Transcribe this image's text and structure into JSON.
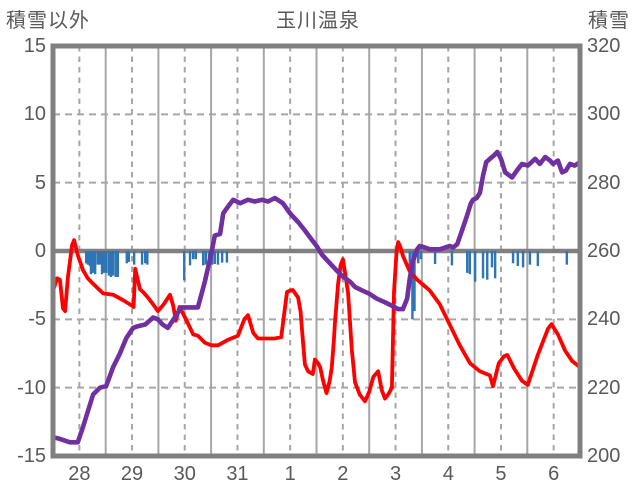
{
  "chart_data": {
    "type": "composite",
    "title": "玉川温泉",
    "left_axis": {
      "label": "積雪以外",
      "min": -15,
      "max": 15,
      "ticks": [
        15,
        10,
        5,
        0,
        -5,
        -10,
        -15
      ]
    },
    "right_axis": {
      "label": "積雪",
      "min": 200,
      "max": 320,
      "ticks": [
        320,
        300,
        280,
        260,
        240,
        220,
        200
      ]
    },
    "x_axis": {
      "labels": [
        "28",
        "29",
        "30",
        "31",
        "1",
        "2",
        "3",
        "4",
        "5",
        "6"
      ],
      "days": 10,
      "solid_grid_at_day_bounds": true,
      "dashed_grid_at_noon": true
    },
    "colors": {
      "temperature": "#ff0000",
      "snow_depth": "#7030a0",
      "precipitation": "#2e75b6",
      "grid": "#a6a6a6",
      "axis_frame": "#808080",
      "text": "#595959",
      "background": "#ffffff"
    },
    "series": [
      {
        "name": "precipitation",
        "type": "bar",
        "axis": "left",
        "color": "#2e75b6",
        "points": [
          [
            0.63,
            -0.9
          ],
          [
            0.66,
            -1.0
          ],
          [
            0.7,
            -1.1
          ],
          [
            0.72,
            -1.7
          ],
          [
            0.76,
            -1.6
          ],
          [
            0.8,
            -1.7
          ],
          [
            0.85,
            -1.0
          ],
          [
            0.89,
            -1.0
          ],
          [
            0.93,
            -1.7
          ],
          [
            0.97,
            -1.6
          ],
          [
            1.01,
            -1.6
          ],
          [
            1.06,
            -1.8
          ],
          [
            1.1,
            -1.9
          ],
          [
            1.14,
            -1.8
          ],
          [
            1.19,
            -1.9
          ],
          [
            1.23,
            -1.9
          ],
          [
            1.4,
            -0.9
          ],
          [
            1.44,
            -0.8
          ],
          [
            1.54,
            -1.0
          ],
          [
            1.69,
            -1.0
          ],
          [
            1.75,
            -0.9
          ],
          [
            1.79,
            -1.0
          ],
          [
            2.49,
            -2.15
          ],
          [
            2.6,
            -1.05
          ],
          [
            2.66,
            -0.6
          ],
          [
            2.71,
            -0.6
          ],
          [
            2.85,
            -1.05
          ],
          [
            2.9,
            -1.0
          ],
          [
            2.96,
            -0.95
          ],
          [
            3.02,
            -1.0
          ],
          [
            3.07,
            -0.95
          ],
          [
            3.13,
            -1.0
          ],
          [
            3.21,
            -0.85
          ],
          [
            3.3,
            -0.85
          ],
          [
            6.77,
            -1.1
          ],
          [
            6.82,
            -5.0
          ],
          [
            6.86,
            -4.4
          ],
          [
            6.93,
            -0.9
          ],
          [
            6.98,
            -0.6
          ],
          [
            7.25,
            -0.95
          ],
          [
            7.57,
            -1.05
          ],
          [
            7.86,
            -1.6
          ],
          [
            7.91,
            -1.7
          ],
          [
            8.01,
            -2.25
          ],
          [
            8.16,
            -2.0
          ],
          [
            8.24,
            -2.1
          ],
          [
            8.33,
            -1.2
          ],
          [
            8.39,
            -2.0
          ],
          [
            8.73,
            -0.9
          ],
          [
            8.82,
            -1.1
          ],
          [
            8.92,
            -1.2
          ],
          [
            9.05,
            -1.0
          ],
          [
            9.2,
            -1.1
          ],
          [
            9.75,
            -1.0
          ]
        ]
      },
      {
        "name": "temperature",
        "type": "line",
        "axis": "left",
        "color": "#ff0000",
        "width": 3.8,
        "points": [
          [
            0,
            -2.9
          ],
          [
            0.08,
            -2.0
          ],
          [
            0.13,
            -2.1
          ],
          [
            0.19,
            -4.2
          ],
          [
            0.23,
            -4.4
          ],
          [
            0.28,
            -2.0
          ],
          [
            0.36,
            0.4
          ],
          [
            0.4,
            0.8
          ],
          [
            0.47,
            -0.3
          ],
          [
            0.57,
            -1.4
          ],
          [
            0.66,
            -2.0
          ],
          [
            0.76,
            -2.4
          ],
          [
            0.95,
            -3.1
          ],
          [
            1.14,
            -3.2
          ],
          [
            1.33,
            -3.6
          ],
          [
            1.5,
            -4.0
          ],
          [
            1.53,
            -4.1
          ],
          [
            1.56,
            -1.3
          ],
          [
            1.65,
            -2.8
          ],
          [
            1.71,
            -3.0
          ],
          [
            1.8,
            -3.4
          ],
          [
            1.9,
            -3.9
          ],
          [
            1.99,
            -4.4
          ],
          [
            2.1,
            -3.9
          ],
          [
            2.22,
            -3.2
          ],
          [
            2.28,
            -4.0
          ],
          [
            2.33,
            -5.1
          ],
          [
            2.4,
            -4.1
          ],
          [
            2.47,
            -4.6
          ],
          [
            2.56,
            -5.3
          ],
          [
            2.66,
            -6.1
          ],
          [
            2.75,
            -6.2
          ],
          [
            2.88,
            -6.7
          ],
          [
            3.0,
            -6.9
          ],
          [
            3.13,
            -6.9
          ],
          [
            3.32,
            -6.5
          ],
          [
            3.51,
            -6.2
          ],
          [
            3.63,
            -5.0
          ],
          [
            3.7,
            -4.7
          ],
          [
            3.8,
            -6.0
          ],
          [
            3.89,
            -6.4
          ],
          [
            4.0,
            -6.4
          ],
          [
            4.21,
            -6.4
          ],
          [
            4.33,
            -6.3
          ],
          [
            4.44,
            -3.0
          ],
          [
            4.5,
            -2.9
          ],
          [
            4.55,
            -2.85
          ],
          [
            4.65,
            -3.4
          ],
          [
            4.7,
            -4.5
          ],
          [
            4.72,
            -5.5
          ],
          [
            4.78,
            -8.3
          ],
          [
            4.84,
            -8.8
          ],
          [
            4.93,
            -9.0
          ],
          [
            4.97,
            -7.95
          ],
          [
            5.03,
            -8.2
          ],
          [
            5.07,
            -8.5
          ],
          [
            5.12,
            -9.4
          ],
          [
            5.19,
            -10.4
          ],
          [
            5.25,
            -9.5
          ],
          [
            5.29,
            -8.5
          ],
          [
            5.33,
            -6.5
          ],
          [
            5.35,
            -5.3
          ],
          [
            5.41,
            -2.4
          ],
          [
            5.46,
            -1.0
          ],
          [
            5.5,
            -0.6
          ],
          [
            5.55,
            -1.8
          ],
          [
            5.6,
            -3.1
          ],
          [
            5.67,
            -7.2
          ],
          [
            5.73,
            -9.6
          ],
          [
            5.82,
            -10.5
          ],
          [
            5.92,
            -11.0
          ],
          [
            6.0,
            -10.3
          ],
          [
            6.08,
            -9.2
          ],
          [
            6.17,
            -8.8
          ],
          [
            6.24,
            -10.2
          ],
          [
            6.3,
            -10.8
          ],
          [
            6.36,
            -10.5
          ],
          [
            6.43,
            -10.0
          ],
          [
            6.47,
            -3.0
          ],
          [
            6.52,
            0.0
          ],
          [
            6.55,
            0.65
          ],
          [
            6.6,
            0.2
          ],
          [
            6.64,
            -0.35
          ],
          [
            6.77,
            -1.5
          ],
          [
            6.91,
            -2.1
          ],
          [
            7.06,
            -2.6
          ],
          [
            7.15,
            -2.9
          ],
          [
            7.34,
            -3.9
          ],
          [
            7.53,
            -5.4
          ],
          [
            7.72,
            -6.9
          ],
          [
            7.91,
            -8.2
          ],
          [
            8.1,
            -8.8
          ],
          [
            8.29,
            -9.1
          ],
          [
            8.35,
            -9.9
          ],
          [
            8.46,
            -8.2
          ],
          [
            8.56,
            -7.7
          ],
          [
            8.62,
            -7.6
          ],
          [
            8.75,
            -8.6
          ],
          [
            8.9,
            -9.5
          ],
          [
            9.01,
            -9.8
          ],
          [
            9.2,
            -7.6
          ],
          [
            9.39,
            -5.7
          ],
          [
            9.46,
            -5.35
          ],
          [
            9.58,
            -6.1
          ],
          [
            9.72,
            -7.3
          ],
          [
            9.85,
            -8.05
          ],
          [
            10,
            -8.5
          ]
        ]
      },
      {
        "name": "snow-depth",
        "type": "line",
        "axis": "right",
        "color": "#7030a0",
        "width": 4.6,
        "points": [
          [
            0,
            205.5
          ],
          [
            0.13,
            205
          ],
          [
            0.32,
            204
          ],
          [
            0.47,
            204
          ],
          [
            0.57,
            208.5
          ],
          [
            0.76,
            218
          ],
          [
            0.89,
            220
          ],
          [
            1.01,
            220.5
          ],
          [
            1.14,
            226
          ],
          [
            1.27,
            230
          ],
          [
            1.39,
            234.5
          ],
          [
            1.52,
            237.5
          ],
          [
            1.61,
            238
          ],
          [
            1.75,
            238.5
          ],
          [
            1.9,
            240.5
          ],
          [
            1.99,
            240
          ],
          [
            2.08,
            238.5
          ],
          [
            2.18,
            237.5
          ],
          [
            2.33,
            241
          ],
          [
            2.43,
            243.5
          ],
          [
            2.6,
            243.5
          ],
          [
            2.75,
            243.5
          ],
          [
            2.88,
            251
          ],
          [
            3.0,
            259
          ],
          [
            3.07,
            264.5
          ],
          [
            3.17,
            265
          ],
          [
            3.23,
            271
          ],
          [
            3.32,
            273
          ],
          [
            3.42,
            275
          ],
          [
            3.55,
            274
          ],
          [
            3.7,
            275
          ],
          [
            3.83,
            274.5
          ],
          [
            3.97,
            275
          ],
          [
            4.08,
            274.5
          ],
          [
            4.21,
            275.5
          ],
          [
            4.36,
            274
          ],
          [
            4.5,
            271
          ],
          [
            4.65,
            268.5
          ],
          [
            4.78,
            266
          ],
          [
            4.9,
            263.5
          ],
          [
            5.0,
            261.5
          ],
          [
            5.1,
            259
          ],
          [
            5.22,
            257
          ],
          [
            5.37,
            254.5
          ],
          [
            5.5,
            252.5
          ],
          [
            5.64,
            251
          ],
          [
            5.73,
            249.5
          ],
          [
            5.86,
            248.5
          ],
          [
            6.0,
            247.5
          ],
          [
            6.15,
            246
          ],
          [
            6.3,
            245
          ],
          [
            6.43,
            244
          ],
          [
            6.55,
            243
          ],
          [
            6.64,
            243
          ],
          [
            6.72,
            246
          ],
          [
            6.77,
            252
          ],
          [
            6.83,
            257
          ],
          [
            6.91,
            260.5
          ],
          [
            6.96,
            261.5
          ],
          [
            7.06,
            261
          ],
          [
            7.15,
            260.5
          ],
          [
            7.34,
            260.5
          ],
          [
            7.53,
            261.5
          ],
          [
            7.59,
            261
          ],
          [
            7.67,
            262
          ],
          [
            7.76,
            266
          ],
          [
            7.86,
            270.5
          ],
          [
            7.93,
            274
          ],
          [
            7.97,
            275
          ],
          [
            8.04,
            275.5
          ],
          [
            8.1,
            277
          ],
          [
            8.16,
            282
          ],
          [
            8.22,
            286
          ],
          [
            8.29,
            287
          ],
          [
            8.37,
            288
          ],
          [
            8.43,
            289
          ],
          [
            8.5,
            287
          ],
          [
            8.58,
            283
          ],
          [
            8.67,
            282
          ],
          [
            8.71,
            281.5
          ],
          [
            8.8,
            283.5
          ],
          [
            8.9,
            285.5
          ],
          [
            9.01,
            285
          ],
          [
            9.15,
            287
          ],
          [
            9.24,
            285.5
          ],
          [
            9.34,
            287.5
          ],
          [
            9.43,
            286.5
          ],
          [
            9.49,
            285.5
          ],
          [
            9.58,
            286.5
          ],
          [
            9.66,
            283
          ],
          [
            9.73,
            283.5
          ],
          [
            9.81,
            285.5
          ],
          [
            9.9,
            285
          ],
          [
            10,
            286
          ]
        ]
      }
    ]
  }
}
